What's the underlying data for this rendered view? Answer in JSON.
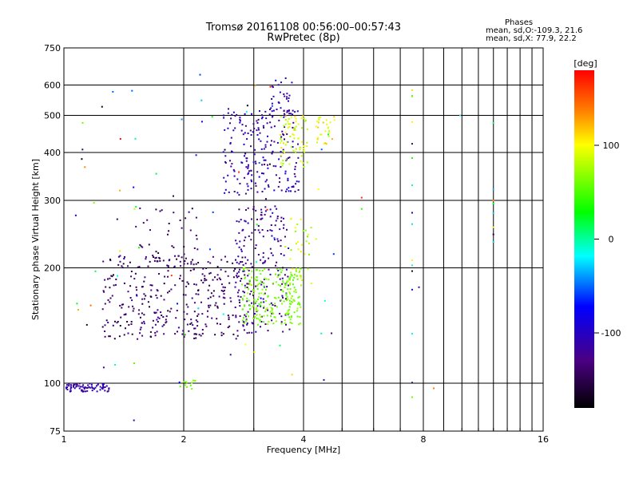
{
  "chart_data": {
    "type": "scatter",
    "title": "Tromsø 20161108 00:56:00–00:57:43",
    "subtitle": "RwPretec (8p)",
    "xlabel": "Frequency [MHz]",
    "ylabel": "Stationary phase Virtual Height [km]",
    "x_scale": "log",
    "y_scale": "log",
    "xlim": [
      1,
      16
    ],
    "ylim": [
      75,
      750
    ],
    "x_major_ticks": [
      1,
      2,
      4,
      8,
      16
    ],
    "x_minor_ticks": [
      3,
      5,
      6,
      7,
      9,
      10,
      11,
      12,
      13,
      14,
      15
    ],
    "x_tick_labels": [
      "1",
      "2",
      "4",
      "8",
      "16"
    ],
    "y_grid_ticks": [
      100,
      200,
      300,
      400,
      500,
      600,
      750
    ],
    "y_tick_values": [
      75,
      100,
      200,
      300,
      400,
      500,
      600,
      750
    ],
    "y_tick_labels": [
      "75",
      "100",
      "200",
      "300",
      "400",
      "500",
      "600",
      "750"
    ],
    "grid": true,
    "stats": {
      "heading": "Phases",
      "o_line": "mean, sd,O:-109.3, 21.6",
      "x_line": "mean, sd,X:  77.9, 22.2"
    },
    "colorbar": {
      "label": "[deg]",
      "range": [
        -180,
        180
      ],
      "ticks": [
        100,
        0,
        -100
      ],
      "tick_labels": [
        "100",
        "0",
        "-100"
      ],
      "position": "right"
    },
    "clusters": [
      {
        "xr": [
          1.0,
          1.3
        ],
        "yr": [
          95,
          100
        ],
        "phase": [
          -125,
          -95
        ],
        "n": 75
      },
      {
        "xr": [
          1.95,
          2.15
        ],
        "yr": [
          96,
          102
        ],
        "phase": [
          55,
          75
        ],
        "n": 12
      },
      {
        "xr": [
          1.25,
          2.9
        ],
        "yr": [
          130,
          215
        ],
        "phase": [
          -160,
          -120
        ],
        "n": 340
      },
      {
        "xr": [
          1.5,
          2.2
        ],
        "yr": [
          200,
          290
        ],
        "phase": [
          -160,
          -120
        ],
        "n": 45
      },
      {
        "xr": [
          2.7,
          3.7
        ],
        "yr": [
          135,
          290
        ],
        "phase": [
          -140,
          -100
        ],
        "n": 200
      },
      {
        "xr": [
          2.8,
          3.95
        ],
        "yr": [
          142,
          200
        ],
        "phase": [
          50,
          75
        ],
        "n": 220
      },
      {
        "xr": [
          3.7,
          4.2
        ],
        "yr": [
          180,
          270
        ],
        "phase": [
          55,
          110
        ],
        "n": 30
      },
      {
        "xr": [
          2.5,
          3.9
        ],
        "yr": [
          310,
          520
        ],
        "phase": [
          -130,
          -85
        ],
        "n": 210
      },
      {
        "xr": [
          3.3,
          3.8
        ],
        "yr": [
          500,
          650
        ],
        "phase": [
          -125,
          -95
        ],
        "n": 30
      },
      {
        "xr": [
          3.5,
          4.1
        ],
        "yr": [
          360,
          500
        ],
        "phase": [
          70,
          115
        ],
        "n": 70
      },
      {
        "xr": [
          4.3,
          4.8
        ],
        "yr": [
          420,
          500
        ],
        "phase": [
          80,
          125
        ],
        "n": 28
      },
      {
        "xr": [
          1.05,
          4.8
        ],
        "yr": [
          100,
          640
        ],
        "phase": [
          -180,
          180
        ],
        "n": 90
      }
    ],
    "vertical_lines": [
      {
        "x": 7.5,
        "yr": [
          90,
          620
        ],
        "phase": [
          -180,
          180
        ],
        "n": 16
      },
      {
        "x": 12.0,
        "yr": [
          130,
          510
        ],
        "phase": [
          -180,
          180
        ],
        "n": 8
      }
    ],
    "isolated_points": [
      {
        "x": 1.5,
        "y": 80,
        "phase": -115
      },
      {
        "x": 4.5,
        "y": 102,
        "phase": -110
      },
      {
        "x": 8.5,
        "y": 97,
        "phase": 140
      },
      {
        "x": 9.9,
        "y": 500,
        "phase": -20
      },
      {
        "x": 5.6,
        "y": 305,
        "phase": 165
      },
      {
        "x": 5.6,
        "y": 285,
        "phase": 40
      },
      {
        "x": 7.8,
        "y": 178,
        "phase": -120
      }
    ]
  }
}
